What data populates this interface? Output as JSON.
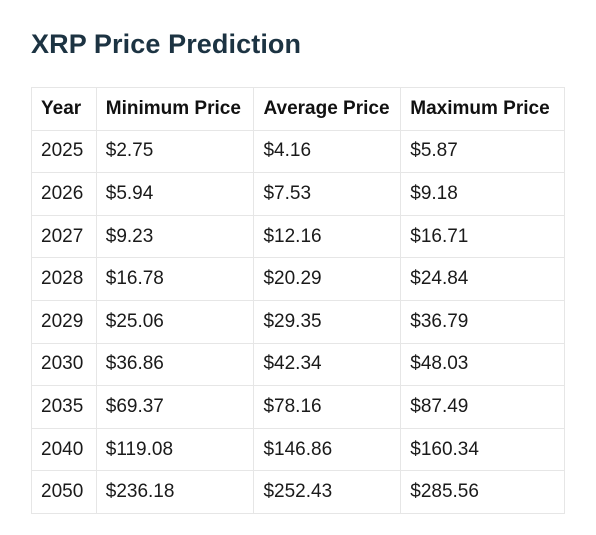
{
  "title": "XRP Price Prediction",
  "table": {
    "headers": [
      "Year",
      "Minimum Price",
      "Average Price",
      "Maximum Price"
    ],
    "rows": [
      [
        "2025",
        "$2.75",
        "$4.16",
        "$5.87"
      ],
      [
        "2026",
        "$5.94",
        "$7.53",
        "$9.18"
      ],
      [
        "2027",
        "$9.23",
        "$12.16",
        "$16.71"
      ],
      [
        "2028",
        "$16.78",
        "$20.29",
        "$24.84"
      ],
      [
        "2029",
        "$25.06",
        "$29.35",
        "$36.79"
      ],
      [
        "2030",
        "$36.86",
        "$42.34",
        "$48.03"
      ],
      [
        "2035",
        "$69.37",
        "$78.16",
        "$87.49"
      ],
      [
        "2040",
        "$119.08",
        "$146.86",
        "$160.34"
      ],
      [
        "2050",
        "$236.18",
        "$252.43",
        "$285.56"
      ]
    ]
  },
  "colors": {
    "title": "#1c3342",
    "border": "#e6e6e6",
    "text": "#1a1a1a"
  }
}
